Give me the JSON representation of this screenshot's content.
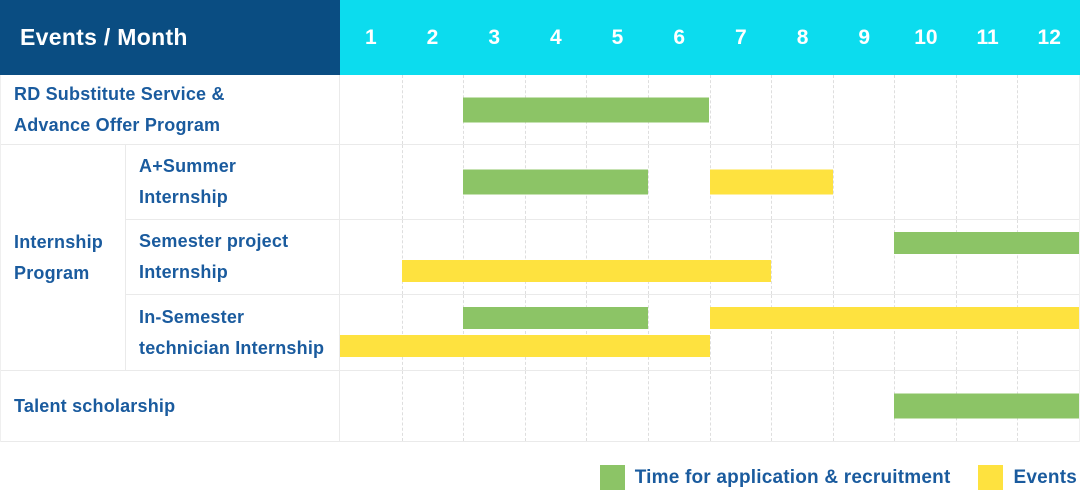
{
  "header": {
    "label": "Events / Month",
    "months": [
      "1",
      "2",
      "3",
      "4",
      "5",
      "6",
      "7",
      "8",
      "9",
      "10",
      "11",
      "12"
    ]
  },
  "group": {
    "label_line1": "Internship",
    "label_line2": "Program"
  },
  "rows": [
    {
      "id": "rd-substitute-service",
      "label_line1": "RD Substitute Service &",
      "label_line2": "Advance Offer Program",
      "bars": [
        {
          "series": "application",
          "start_month": 3,
          "end_month": 6,
          "line": "single"
        }
      ]
    },
    {
      "id": "a-plus-summer-internship",
      "label_line1": "A+Summer",
      "label_line2": "Internship",
      "bars": [
        {
          "series": "application",
          "start_month": 3,
          "end_month": 5,
          "line": "single"
        },
        {
          "series": "events",
          "start_month": 7,
          "end_month": 8,
          "line": "single"
        }
      ]
    },
    {
      "id": "semester-project-internship",
      "label_line1": "Semester project",
      "label_line2": "Internship",
      "bars": [
        {
          "series": "application",
          "start_month": 10,
          "end_month": 12,
          "line": "top"
        },
        {
          "series": "events",
          "start_month": 2,
          "end_month": 7,
          "line": "bottom"
        }
      ]
    },
    {
      "id": "in-semester-technician-internship",
      "label_line1": "In-Semester",
      "label_line2": "technician Internship",
      "bars": [
        {
          "series": "application",
          "start_month": 3,
          "end_month": 5,
          "line": "top"
        },
        {
          "series": "events",
          "start_month": 7,
          "end_month": 12,
          "line": "top"
        },
        {
          "series": "events",
          "start_month": 1,
          "end_month": 6,
          "line": "bottom"
        }
      ]
    },
    {
      "id": "talent-scholarship",
      "label_line1": "Talent scholarship",
      "bars": [
        {
          "series": "application",
          "start_month": 10,
          "end_month": 12,
          "line": "single"
        }
      ]
    }
  ],
  "legend": {
    "items": [
      {
        "series": "application",
        "label": "Time for application & recruitment",
        "color": "#8cc466"
      },
      {
        "series": "events",
        "label": "Events",
        "color": "#fee23f"
      }
    ]
  },
  "colors": {
    "header_bg": "#0a4d82",
    "months_bg": "#0cdcee",
    "green": "#8cc466",
    "yellow": "#fee23f",
    "label_text": "#1a5b9e",
    "header_text": "#ffffff"
  },
  "chart_data": {
    "type": "bar",
    "variant": "gantt-schedule",
    "title": "Events / Month",
    "xlabel": "Month",
    "x_ticks": [
      1,
      2,
      3,
      4,
      5,
      6,
      7,
      8,
      9,
      10,
      11,
      12
    ],
    "xlim": [
      1,
      12
    ],
    "grid": true,
    "legend_position": "bottom-right",
    "series_legend": [
      {
        "name": "Time for application & recruitment",
        "color": "#8cc466"
      },
      {
        "name": "Events",
        "color": "#fee23f"
      }
    ],
    "tasks": [
      {
        "name": "RD Substitute Service & Advance Offer Program",
        "group": null,
        "bars": [
          {
            "series": "Time for application & recruitment",
            "start_month": 3,
            "end_month": 6
          }
        ]
      },
      {
        "name": "A+Summer Internship",
        "group": "Internship Program",
        "bars": [
          {
            "series": "Time for application & recruitment",
            "start_month": 3,
            "end_month": 5
          },
          {
            "series": "Events",
            "start_month": 7,
            "end_month": 8
          }
        ]
      },
      {
        "name": "Semester project Internship",
        "group": "Internship Program",
        "bars": [
          {
            "series": "Time for application & recruitment",
            "start_month": 10,
            "end_month": 12
          },
          {
            "series": "Events",
            "start_month": 2,
            "end_month": 7
          }
        ]
      },
      {
        "name": "In-Semester technician Internship",
        "group": "Internship Program",
        "bars": [
          {
            "series": "Time for application & recruitment",
            "start_month": 3,
            "end_month": 5
          },
          {
            "series": "Events",
            "start_month": 7,
            "end_month": 12
          },
          {
            "series": "Events",
            "start_month": 1,
            "end_month": 6
          }
        ]
      },
      {
        "name": "Talent scholarship",
        "group": null,
        "bars": [
          {
            "series": "Time for application & recruitment",
            "start_month": 10,
            "end_month": 12
          }
        ]
      }
    ]
  }
}
